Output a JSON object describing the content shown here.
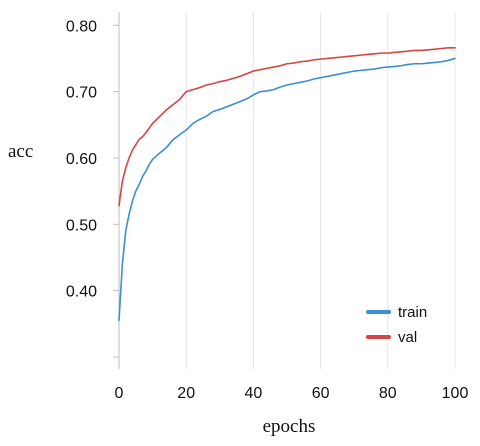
{
  "chart_data": {
    "type": "line",
    "xlabel": "epochs",
    "ylabel": "acc",
    "xlim": [
      0,
      100
    ],
    "ylim": [
      0.3,
      0.82
    ],
    "x_ticks": [
      "0",
      "20",
      "40",
      "60",
      "80",
      "100"
    ],
    "y_ticks": [
      "0.40",
      "0.50",
      "0.60",
      "0.70",
      "0.80"
    ],
    "grid": "vertical",
    "legend_position": "bottom-right",
    "series": [
      {
        "name": "train",
        "color": "#3a8fd1",
        "x": [
          0,
          1,
          2,
          3,
          4,
          5,
          6,
          7,
          8,
          9,
          10,
          12,
          14,
          16,
          18,
          20,
          22,
          24,
          26,
          28,
          30,
          32,
          34,
          36,
          38,
          40,
          42,
          44,
          46,
          48,
          50,
          52,
          54,
          56,
          58,
          60,
          62,
          64,
          66,
          68,
          70,
          72,
          74,
          76,
          78,
          80,
          82,
          84,
          86,
          88,
          90,
          92,
          94,
          96,
          98,
          100
        ],
        "values": [
          0.355,
          0.44,
          0.49,
          0.515,
          0.535,
          0.55,
          0.56,
          0.572,
          0.58,
          0.59,
          0.598,
          0.607,
          0.615,
          0.627,
          0.635,
          0.642,
          0.652,
          0.658,
          0.663,
          0.67,
          0.673,
          0.677,
          0.681,
          0.685,
          0.689,
          0.695,
          0.7,
          0.701,
          0.703,
          0.707,
          0.71,
          0.712,
          0.714,
          0.716,
          0.719,
          0.721,
          0.723,
          0.725,
          0.727,
          0.729,
          0.731,
          0.732,
          0.733,
          0.734,
          0.736,
          0.737,
          0.738,
          0.739,
          0.741,
          0.742,
          0.742,
          0.743,
          0.744,
          0.745,
          0.747,
          0.75
        ]
      },
      {
        "name": "val",
        "color": "#d64541",
        "x": [
          0,
          1,
          2,
          3,
          4,
          5,
          6,
          7,
          8,
          9,
          10,
          12,
          14,
          16,
          18,
          20,
          22,
          24,
          26,
          28,
          30,
          32,
          34,
          36,
          38,
          40,
          42,
          44,
          46,
          48,
          50,
          52,
          54,
          56,
          58,
          60,
          62,
          64,
          66,
          68,
          70,
          72,
          74,
          76,
          78,
          80,
          82,
          84,
          86,
          88,
          90,
          92,
          94,
          96,
          98,
          100
        ],
        "values": [
          0.528,
          0.565,
          0.585,
          0.6,
          0.612,
          0.62,
          0.628,
          0.632,
          0.638,
          0.645,
          0.652,
          0.662,
          0.672,
          0.68,
          0.688,
          0.7,
          0.703,
          0.706,
          0.71,
          0.712,
          0.715,
          0.717,
          0.72,
          0.723,
          0.727,
          0.731,
          0.733,
          0.735,
          0.737,
          0.739,
          0.742,
          0.743,
          0.745,
          0.746,
          0.748,
          0.749,
          0.75,
          0.751,
          0.752,
          0.753,
          0.754,
          0.755,
          0.756,
          0.757,
          0.758,
          0.758,
          0.759,
          0.76,
          0.761,
          0.762,
          0.762,
          0.763,
          0.764,
          0.765,
          0.766,
          0.766
        ]
      }
    ]
  }
}
